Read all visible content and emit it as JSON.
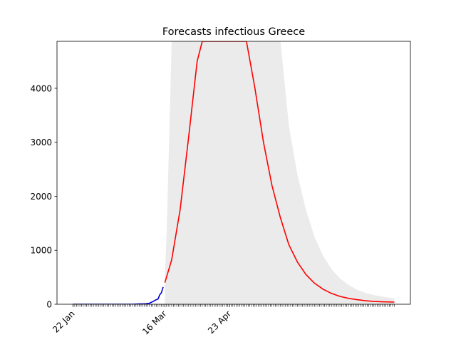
{
  "chart_data": {
    "type": "line",
    "title": "Forecasts infectious Greece",
    "xlabel": "",
    "ylabel": "",
    "x_axis": {
      "type": "date",
      "start": "2020-01-22",
      "end": "2020-07-29",
      "tick_labels": [
        {
          "date": "2020-01-22",
          "label": "22 Jan"
        },
        {
          "date": "2020-03-16",
          "label": "16 Mar"
        },
        {
          "date": "2020-04-23",
          "label": "23 Apr"
        }
      ],
      "minor_ticks": "daily"
    },
    "y_axis": {
      "ylim": [
        0,
        4870
      ],
      "ticks": [
        0,
        1000,
        2000,
        3000,
        4000
      ]
    },
    "grid": false,
    "series": [
      {
        "color": "#0000cc",
        "style": "observed",
        "x": [
          "2020-01-22",
          "2020-02-26",
          "2020-02-28",
          "2020-03-01",
          "2020-03-03",
          "2020-03-05",
          "2020-03-07",
          "2020-03-09",
          "2020-03-11",
          "2020-03-12",
          "2020-03-13",
          "2020-03-14",
          "2020-03-15"
        ],
        "y": [
          0,
          0,
          3,
          7,
          7,
          9,
          20,
          50,
          85,
          95,
          175,
          215,
          320
        ]
      },
      {
        "color": "#ff0000",
        "style": "forecast",
        "x": [
          "2020-03-16",
          "2020-03-20",
          "2020-03-25",
          "2020-03-30",
          "2020-04-04",
          "2020-04-07",
          "2020-05-03",
          "2020-05-08",
          "2020-05-13",
          "2020-05-18",
          "2020-05-23",
          "2020-05-28",
          "2020-06-02",
          "2020-06-07",
          "2020-06-12",
          "2020-06-17",
          "2020-06-22",
          "2020-06-27",
          "2020-07-02",
          "2020-07-07",
          "2020-07-12",
          "2020-07-17",
          "2020-07-22",
          "2020-07-29"
        ],
        "y": [
          400,
          820,
          1750,
          3100,
          4500,
          4870,
          4870,
          4000,
          3000,
          2200,
          1600,
          1100,
          780,
          550,
          390,
          280,
          200,
          145,
          110,
          85,
          65,
          52,
          45,
          40
        ]
      }
    ],
    "confidence_band": {
      "color": "#ebebeb",
      "x": [
        "2020-03-16",
        "2020-03-17",
        "2020-03-18",
        "2020-03-19",
        "2020-03-20",
        "2020-03-21",
        "2020-05-23",
        "2020-05-28",
        "2020-06-02",
        "2020-06-07",
        "2020-06-12",
        "2020-06-17",
        "2020-06-22",
        "2020-06-27",
        "2020-07-02",
        "2020-07-07",
        "2020-07-12",
        "2020-07-17",
        "2020-07-22",
        "2020-07-29"
      ],
      "upper": [
        520,
        1300,
        2400,
        3600,
        4870,
        4870,
        4870,
        3300,
        2400,
        1750,
        1250,
        900,
        650,
        480,
        360,
        270,
        210,
        170,
        140,
        110
      ],
      "lower": [
        0,
        0,
        0,
        0,
        0,
        0,
        0,
        0,
        0,
        0,
        0,
        0,
        0,
        0,
        0,
        0,
        0,
        0,
        0,
        0
      ]
    }
  }
}
